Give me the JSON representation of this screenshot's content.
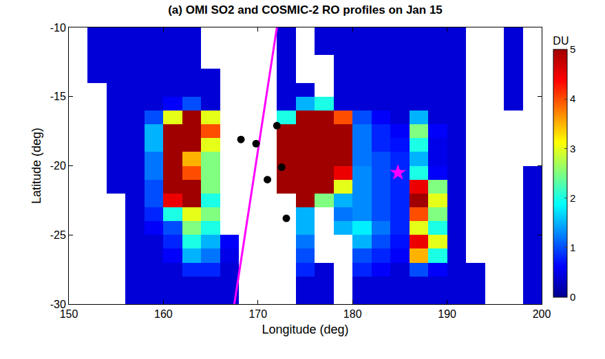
{
  "chart_data": {
    "type": "heatmap",
    "title": "(a) OMI SO2 and COSMIC-2 RO profiles on Jan 15",
    "x_label": "Longitude (deg)",
    "y_label": "Latitude (deg)",
    "xlim": [
      150,
      200
    ],
    "ylim": [
      -30,
      -10
    ],
    "xticks": [
      150,
      160,
      170,
      180,
      190,
      200
    ],
    "yticks": [
      -30,
      -25,
      -20,
      -15,
      -10
    ],
    "x": [
      151,
      153,
      155,
      157,
      159,
      161,
      163,
      165,
      167,
      169,
      171,
      173,
      175,
      177,
      179,
      181,
      183,
      185,
      187,
      189,
      191,
      193,
      195,
      197,
      199
    ],
    "y": [
      -10.5,
      -11.5,
      -12.5,
      -13.5,
      -14.5,
      -15.5,
      -16.5,
      -17.5,
      -18.5,
      -19.5,
      -20.5,
      -21.5,
      -22.5,
      -23.5,
      -24.5,
      -25.5,
      -26.5,
      -27.5,
      -28.5,
      -29.5
    ],
    "z": [
      [
        null,
        0.4,
        0.4,
        0.4,
        0.4,
        0.4,
        0.4,
        null,
        null,
        null,
        null,
        0.4,
        null,
        0.4,
        0.4,
        0.4,
        0.4,
        0.4,
        0.4,
        0.4,
        0.4,
        null,
        null,
        0.4,
        null
      ],
      [
        null,
        0.4,
        0.4,
        0.4,
        0.4,
        0.4,
        0.4,
        null,
        null,
        null,
        null,
        0.4,
        null,
        0.4,
        0.4,
        0.4,
        0.4,
        0.4,
        0.4,
        0.4,
        0.4,
        null,
        null,
        0.4,
        null
      ],
      [
        null,
        0.4,
        0.4,
        0.4,
        0.4,
        0.4,
        0.4,
        null,
        null,
        null,
        null,
        0.4,
        null,
        null,
        0.4,
        0.4,
        0.4,
        0.4,
        0.4,
        0.4,
        0.4,
        null,
        null,
        0.4,
        null
      ],
      [
        null,
        0.4,
        0.4,
        0.4,
        0.4,
        0.4,
        0.4,
        0.4,
        null,
        null,
        null,
        0.4,
        null,
        null,
        0.4,
        0.4,
        0.4,
        0.4,
        0.4,
        0.4,
        0.4,
        null,
        null,
        0.4,
        null
      ],
      [
        null,
        null,
        0.4,
        0.4,
        0.4,
        0.4,
        0.4,
        0.4,
        null,
        null,
        null,
        0.4,
        0.4,
        null,
        0.4,
        0.4,
        0.4,
        0.4,
        0.4,
        0.4,
        0.4,
        null,
        null,
        0.4,
        null
      ],
      [
        null,
        null,
        0.4,
        0.4,
        0.4,
        0.6,
        1,
        0.4,
        null,
        null,
        null,
        0.4,
        1.5,
        2,
        0.4,
        0.4,
        0.4,
        0.4,
        0.4,
        0.4,
        0.4,
        null,
        null,
        0.4,
        null
      ],
      [
        null,
        null,
        0.4,
        0.4,
        1,
        3,
        5,
        3,
        null,
        null,
        null,
        2,
        5,
        5,
        4,
        1,
        0.6,
        0.4,
        1.5,
        0.4,
        0.4,
        null,
        null,
        null,
        null
      ],
      [
        null,
        null,
        0.4,
        0.4,
        1.5,
        5,
        5,
        4,
        null,
        null,
        null,
        5,
        5,
        5,
        5,
        1.2,
        0.8,
        0.6,
        2.5,
        0.6,
        0.4,
        null,
        null,
        null,
        null
      ],
      [
        null,
        null,
        0.4,
        0.4,
        1.5,
        5,
        5,
        3,
        null,
        null,
        null,
        5,
        5,
        5,
        5,
        1.2,
        0.8,
        0.7,
        2,
        0.5,
        0.4,
        null,
        null,
        null,
        null
      ],
      [
        null,
        null,
        0.4,
        0.4,
        1.2,
        5,
        3.5,
        2.5,
        null,
        null,
        null,
        5,
        5,
        5,
        5,
        1.2,
        1,
        0.8,
        1.5,
        0.5,
        0.4,
        null,
        null,
        null,
        null
      ],
      [
        null,
        null,
        0.4,
        0.4,
        1.2,
        5,
        4,
        2.5,
        null,
        null,
        null,
        5,
        5,
        5,
        4.5,
        1.3,
        1,
        0.8,
        2,
        0.6,
        0.4,
        null,
        null,
        null,
        0.4
      ],
      [
        null,
        null,
        0.4,
        0.4,
        1,
        5,
        5,
        2.5,
        null,
        null,
        null,
        5,
        5,
        5,
        3,
        1.3,
        1,
        0.8,
        4.5,
        2.5,
        0.4,
        null,
        null,
        null,
        0.4
      ],
      [
        null,
        null,
        null,
        0.4,
        1,
        4.5,
        5,
        2,
        null,
        null,
        null,
        null,
        5,
        2.5,
        1.5,
        1.3,
        1,
        0.8,
        5,
        3,
        0.4,
        null,
        null,
        null,
        0.4
      ],
      [
        null,
        null,
        null,
        0.4,
        0.8,
        2,
        3,
        2.5,
        null,
        null,
        null,
        null,
        1.5,
        null,
        1.2,
        1.3,
        1,
        0.8,
        4,
        2.5,
        0.4,
        null,
        null,
        null,
        0.4
      ],
      [
        null,
        null,
        null,
        0.4,
        0.6,
        1,
        2.5,
        2,
        null,
        null,
        null,
        null,
        1.5,
        null,
        1.5,
        1.8,
        1.2,
        0.8,
        3,
        2,
        0.4,
        null,
        null,
        null,
        0.4
      ],
      [
        null,
        null,
        null,
        0.4,
        0.4,
        0.8,
        2,
        1.5,
        0.6,
        null,
        null,
        null,
        1.2,
        null,
        null,
        1.5,
        1,
        0.7,
        4.5,
        3,
        0.4,
        null,
        null,
        null,
        0.4
      ],
      [
        null,
        null,
        null,
        0.4,
        0.4,
        0.6,
        1.5,
        1.2,
        0.5,
        null,
        null,
        null,
        1,
        null,
        null,
        1,
        0.8,
        0.6,
        3.5,
        2,
        0.4,
        null,
        null,
        null,
        0.4
      ],
      [
        null,
        null,
        null,
        0.4,
        0.4,
        0.4,
        0.8,
        0.8,
        0.4,
        null,
        null,
        null,
        0.8,
        0.4,
        null,
        0.8,
        0.6,
        0.4,
        1,
        0.6,
        0.4,
        0.4,
        null,
        null,
        0.4
      ],
      [
        null,
        null,
        null,
        0.4,
        0.4,
        0.4,
        0.4,
        0.4,
        0.4,
        null,
        null,
        null,
        0.4,
        0.4,
        null,
        0.4,
        0.4,
        0.4,
        0.4,
        0.4,
        0.4,
        0.4,
        null,
        null,
        0.4
      ],
      [
        null,
        null,
        null,
        0.4,
        0.4,
        0.4,
        0.4,
        0.4,
        0.4,
        null,
        null,
        null,
        0.4,
        0.4,
        null,
        0.4,
        0.4,
        0.4,
        0.4,
        0.4,
        0.4,
        0.4,
        null,
        null,
        0.4
      ]
    ],
    "colorbar": {
      "title": "DU",
      "range": [
        0,
        5
      ],
      "ticks": [
        0,
        1,
        2,
        3,
        4,
        5
      ]
    },
    "overlays": [
      {
        "type": "line",
        "color": "#ff00ff",
        "x": [
          167.5,
          172
        ],
        "y": [
          -30,
          -10
        ]
      },
      {
        "type": "scatter",
        "marker": "circle",
        "color": "#000000",
        "x": [
          168.2,
          169.8,
          172.0,
          172.5,
          171.0,
          173.0
        ],
        "y": [
          -18.1,
          -18.4,
          -17.1,
          -20.1,
          -21.0,
          -23.8
        ]
      },
      {
        "type": "scatter",
        "marker": "star",
        "color": "#ff00ff",
        "x": [
          184.8
        ],
        "y": [
          -20.5
        ]
      }
    ]
  }
}
